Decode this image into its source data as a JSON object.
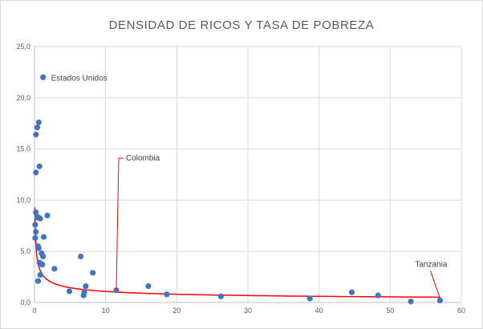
{
  "chart_data": {
    "type": "scatter",
    "title": "DENSIDAD DE RICOS Y TASA DE POBREZA",
    "xlim": [
      0,
      60
    ],
    "ylim": [
      0,
      25
    ],
    "x_ticks": [
      0,
      10,
      20,
      30,
      40,
      50,
      60
    ],
    "y_ticks": [
      "0,0",
      "5,0",
      "10,0",
      "15,0",
      "20,0",
      "25,0"
    ],
    "grid": true,
    "colors": {
      "points": "#4472c4",
      "trend": "#ff0000",
      "grid": "#d9d9d9"
    },
    "points": [
      {
        "x": 1.2,
        "y": 22.0,
        "label": "Estados Unidos"
      },
      {
        "x": 0.6,
        "y": 17.6
      },
      {
        "x": 0.4,
        "y": 17.1
      },
      {
        "x": 0.2,
        "y": 16.4
      },
      {
        "x": 0.7,
        "y": 13.3
      },
      {
        "x": 0.2,
        "y": 12.7
      },
      {
        "x": 0.2,
        "y": 8.8
      },
      {
        "x": 0.4,
        "y": 8.3
      },
      {
        "x": 0.6,
        "y": 8.3
      },
      {
        "x": 1.8,
        "y": 8.5
      },
      {
        "x": 0.8,
        "y": 8.2
      },
      {
        "x": 0.1,
        "y": 7.6
      },
      {
        "x": 0.2,
        "y": 6.9
      },
      {
        "x": 1.3,
        "y": 6.4
      },
      {
        "x": 0.1,
        "y": 6.3
      },
      {
        "x": 0.5,
        "y": 5.5
      },
      {
        "x": 0.6,
        "y": 5.3
      },
      {
        "x": 1.0,
        "y": 4.8
      },
      {
        "x": 1.2,
        "y": 4.5
      },
      {
        "x": 6.5,
        "y": 4.5
      },
      {
        "x": 0.7,
        "y": 3.9
      },
      {
        "x": 0.9,
        "y": 3.8
      },
      {
        "x": 1.1,
        "y": 3.7
      },
      {
        "x": 2.8,
        "y": 3.3
      },
      {
        "x": 8.2,
        "y": 2.9
      },
      {
        "x": 0.8,
        "y": 2.7
      },
      {
        "x": 0.5,
        "y": 2.1
      },
      {
        "x": 7.2,
        "y": 1.6
      },
      {
        "x": 16.0,
        "y": 1.6
      },
      {
        "x": 4.9,
        "y": 1.1
      },
      {
        "x": 7.0,
        "y": 1.0
      },
      {
        "x": 11.5,
        "y": 1.2,
        "label": "Colombia"
      },
      {
        "x": 6.9,
        "y": 0.7
      },
      {
        "x": 18.6,
        "y": 0.8
      },
      {
        "x": 26.2,
        "y": 0.6
      },
      {
        "x": 38.7,
        "y": 0.4
      },
      {
        "x": 44.6,
        "y": 1.0
      },
      {
        "x": 48.3,
        "y": 0.7
      },
      {
        "x": 52.9,
        "y": 0.1
      },
      {
        "x": 57.0,
        "y": 0.2,
        "label": "Tanzania"
      }
    ],
    "trendline": {
      "type": "power",
      "a": 2.85,
      "b": -0.42,
      "x_range": [
        0.06,
        57
      ]
    }
  }
}
